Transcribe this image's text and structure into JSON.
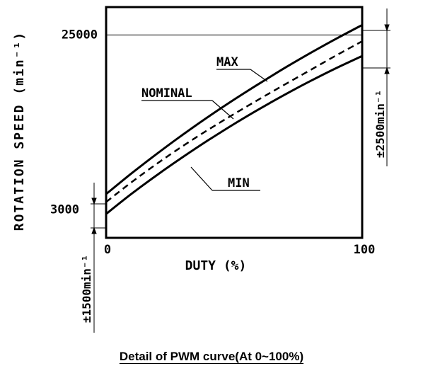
{
  "chart_data": {
    "type": "line",
    "title": "",
    "xlabel": "DUTY (%)",
    "ylabel": "ROTATION SPEED (min⁻¹)",
    "xlim": [
      0,
      100
    ],
    "ylim": [
      -500,
      28500
    ],
    "x_ticks": [
      "0",
      "100"
    ],
    "y_ticks": [
      {
        "label": "3000",
        "value": 3000
      },
      {
        "label": "25000",
        "value": 25000
      }
    ],
    "reference_line": {
      "y": 25000
    },
    "series": [
      {
        "name": "MAX",
        "style": "solid",
        "x": [
          0,
          10,
          20,
          30,
          40,
          50,
          60,
          70,
          80,
          90,
          100
        ],
        "y": [
          5000,
          7620,
          10100,
          12480,
          14740,
          16880,
          18920,
          20900,
          22770,
          24550,
          26250
        ]
      },
      {
        "name": "NOMINAL",
        "style": "dashed",
        "x": [
          0,
          10,
          20,
          30,
          40,
          50,
          60,
          70,
          80,
          90,
          100
        ],
        "y": [
          4000,
          6510,
          8850,
          11050,
          13110,
          15070,
          16960,
          18810,
          20630,
          22450,
          24200
        ]
      },
      {
        "name": "MIN",
        "style": "solid",
        "x": [
          0,
          10,
          20,
          30,
          40,
          50,
          60,
          70,
          80,
          90,
          100
        ],
        "y": [
          2500,
          5050,
          7420,
          9660,
          11790,
          13810,
          15720,
          17530,
          19240,
          20850,
          22350
        ]
      }
    ],
    "annotations": [
      {
        "text": "MAX",
        "x": 50,
        "y": 23000
      },
      {
        "text": "NOMINAL",
        "x": 25,
        "y": 19000
      },
      {
        "text": "MIN",
        "x": 52,
        "y": 6500
      }
    ],
    "tolerances": [
      {
        "label": "±1500min⁻¹",
        "at": "x=0"
      },
      {
        "label": "±2500min⁻¹",
        "at": "x=100"
      }
    ],
    "grid": false,
    "caption": "Detail of PWM curve(At 0~100%)"
  }
}
